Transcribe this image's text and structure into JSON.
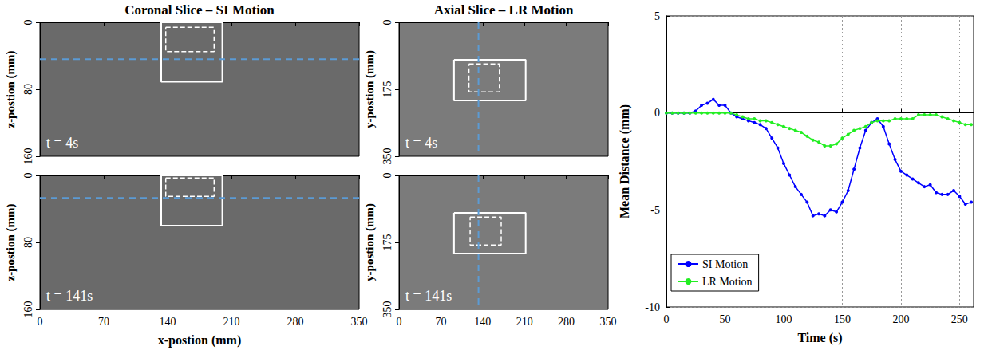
{
  "panels": [
    {
      "title": "Coronal Slice – SI Motion",
      "x_label": "x-postion (mm)",
      "y_label": "z-postion (mm)",
      "xlim": [
        0,
        350
      ],
      "xticks": [
        0,
        70,
        140,
        210,
        280,
        350
      ],
      "ylim": [
        0,
        160
      ],
      "yticks": [
        0,
        80,
        160
      ],
      "frames": [
        {
          "label": "t = 4s",
          "solid_box": [
            133,
            0,
            200,
            71
          ],
          "dashed_box": [
            138,
            6,
            191,
            35
          ],
          "guide": {
            "axis": "y",
            "value": 44
          }
        },
        {
          "label": "t = 141s",
          "solid_box": [
            133,
            0,
            200,
            60
          ],
          "dashed_box": [
            138,
            3,
            191,
            25
          ],
          "guide": {
            "axis": "y",
            "value": 27
          }
        }
      ]
    },
    {
      "title": "Axial Slice – LR Motion",
      "y_label": "y-postion (mm)",
      "xlim": [
        0,
        350
      ],
      "xticks": [
        0,
        70,
        140,
        210,
        280,
        350
      ],
      "ylim": [
        0,
        350
      ],
      "yticks": [
        0,
        175,
        350
      ],
      "frames": [
        {
          "label": "t = 4s",
          "solid_box": [
            92,
            98,
            212,
            204
          ],
          "dashed_box": [
            117,
            109,
            168,
            182
          ],
          "guide": {
            "axis": "x",
            "value": 133
          }
        },
        {
          "label": "t = 141s",
          "solid_box": [
            92,
            98,
            212,
            204
          ],
          "dashed_box": [
            119,
            109,
            171,
            182
          ],
          "guide": {
            "axis": "x",
            "value": 133
          }
        }
      ]
    }
  ],
  "chart_data": {
    "type": "line",
    "xlabel": "Time (s)",
    "ylabel": "Mean Distance (mm)",
    "x": [
      0,
      5,
      10,
      15,
      20,
      25,
      30,
      35,
      40,
      45,
      50,
      55,
      60,
      65,
      70,
      75,
      80,
      85,
      90,
      95,
      100,
      105,
      110,
      115,
      120,
      125,
      130,
      135,
      140,
      145,
      150,
      155,
      160,
      165,
      170,
      175,
      180,
      185,
      190,
      195,
      200,
      205,
      210,
      215,
      220,
      225,
      230,
      235,
      240,
      245,
      250,
      255,
      260
    ],
    "series": [
      {
        "name": "SI Motion",
        "color": "#0000ff",
        "marker": "circle",
        "values": [
          0,
          0,
          0,
          0,
          0,
          0.1,
          0.4,
          0.5,
          0.7,
          0.4,
          0.4,
          0,
          -0.2,
          -0.3,
          -0.4,
          -0.5,
          -0.6,
          -0.8,
          -1.3,
          -1.8,
          -2.6,
          -3.2,
          -3.8,
          -4.2,
          -4.6,
          -5.3,
          -5.2,
          -5.3,
          -5.0,
          -5.1,
          -4.6,
          -4.0,
          -2.9,
          -1.8,
          -0.9,
          -0.5,
          -0.3,
          -0.7,
          -1.6,
          -2.4,
          -3.0,
          -3.2,
          -3.4,
          -3.6,
          -3.8,
          -3.7,
          -4.1,
          -4.2,
          -4.2,
          -4.0,
          -4.3,
          -4.7,
          -4.6
        ]
      },
      {
        "name": "LR Motion",
        "color": "#22ee22",
        "marker": "circle",
        "values": [
          0,
          0,
          0,
          0,
          0,
          0,
          0,
          0,
          0,
          0,
          0,
          0,
          -0.1,
          -0.2,
          -0.3,
          -0.3,
          -0.4,
          -0.4,
          -0.5,
          -0.6,
          -0.7,
          -0.8,
          -0.9,
          -1.0,
          -1.2,
          -1.4,
          -1.5,
          -1.7,
          -1.7,
          -1.6,
          -1.3,
          -1.1,
          -0.9,
          -0.8,
          -0.7,
          -0.5,
          -0.4,
          -0.4,
          -0.4,
          -0.3,
          -0.3,
          -0.3,
          -0.3,
          -0.1,
          -0.1,
          -0.1,
          -0.1,
          -0.2,
          -0.3,
          -0.4,
          -0.5,
          -0.6,
          -0.6
        ]
      }
    ],
    "xlim": [
      0,
      262
    ],
    "xticks": [
      0,
      50,
      100,
      150,
      200,
      250
    ],
    "ylim": [
      -10,
      5
    ],
    "yticks": [
      -10,
      -5,
      0,
      5
    ],
    "grid": true,
    "legend": "lower left"
  }
}
